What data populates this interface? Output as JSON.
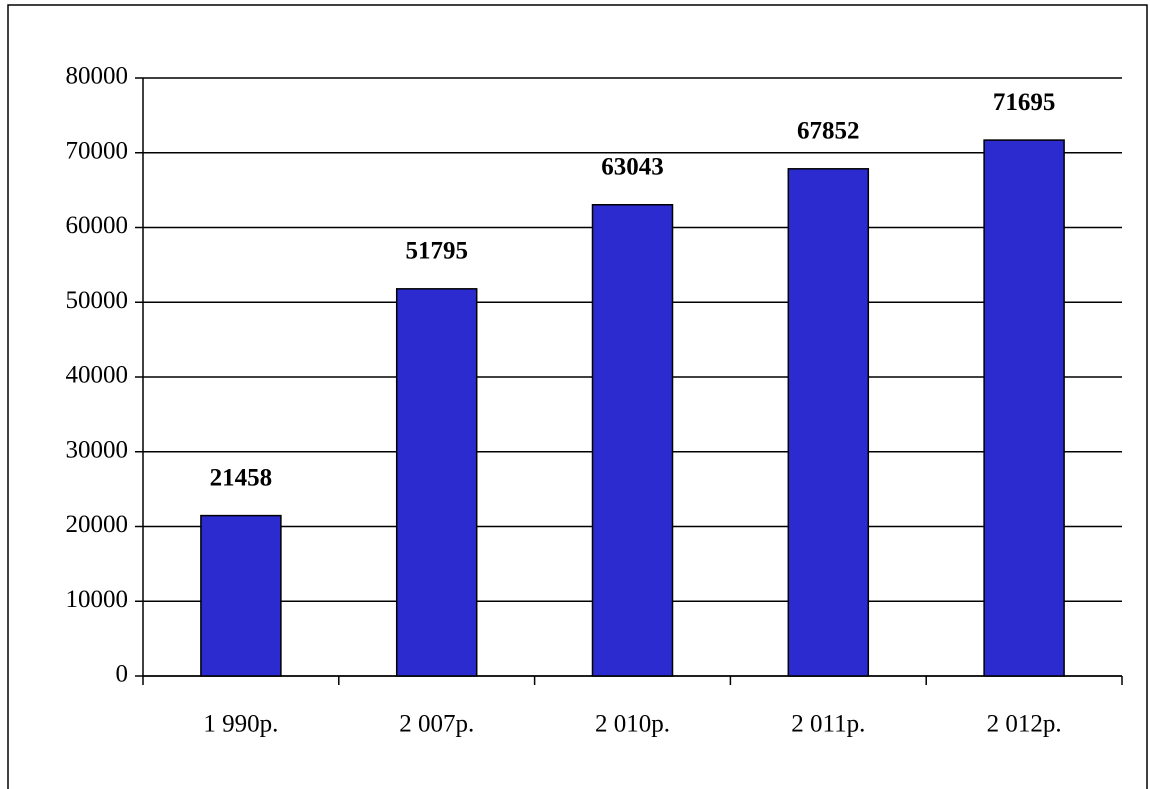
{
  "chart_data": {
    "type": "bar",
    "categories": [
      "1 990р.",
      "2 007р.",
      "2 010р.",
      "2 011р.",
      "2 012р."
    ],
    "values": [
      21458,
      51795,
      63043,
      67852,
      71695
    ],
    "color": "#2b2bcf",
    "ylim": [
      0,
      80000
    ],
    "yticks": [
      0,
      10000,
      20000,
      30000,
      40000,
      50000,
      60000,
      70000,
      80000
    ],
    "grid": true
  }
}
